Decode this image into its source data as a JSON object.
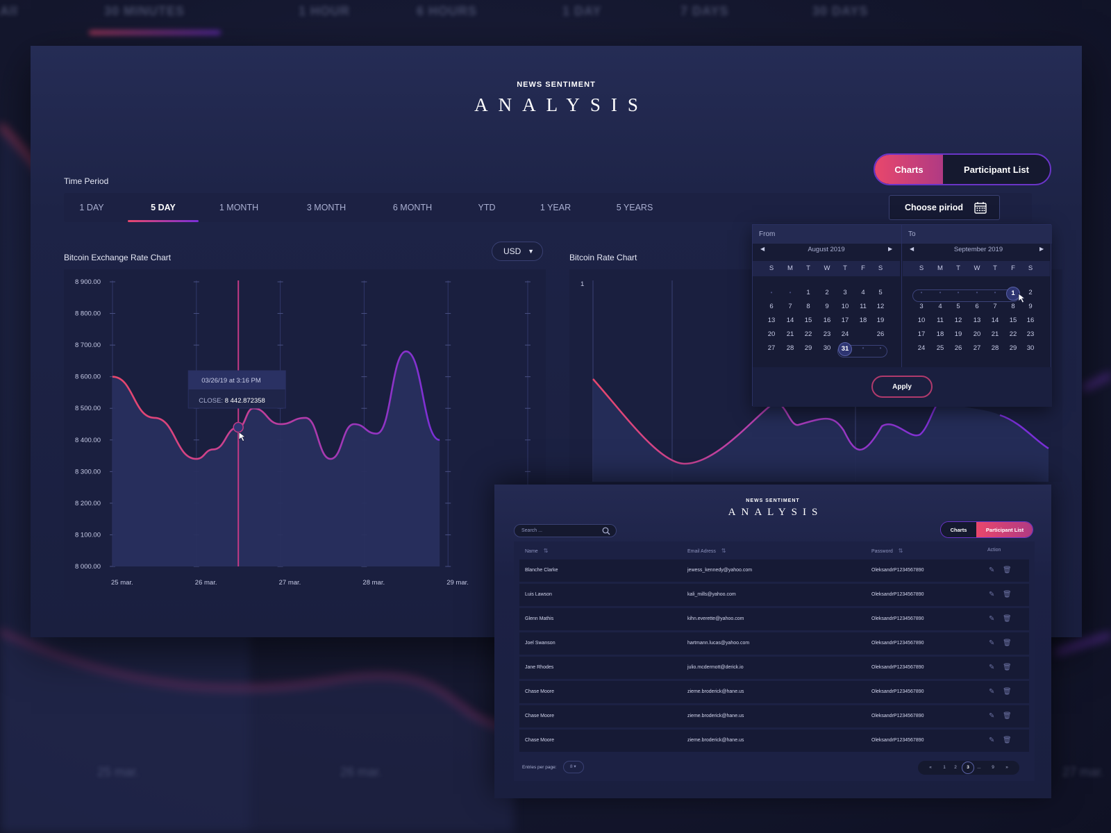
{
  "background": {
    "nav_items": [
      "All",
      "30 MINUTES",
      "1 HOUR",
      "6 HOURS",
      "1 DAY",
      "7 DAYS",
      "30 DAYS"
    ],
    "date_labels": [
      "25 mar.",
      "26 mar.",
      "27 mar."
    ]
  },
  "main": {
    "eyebrow": "NEWS SENTIMENT",
    "title": "ANALYSIS",
    "toggle": {
      "charts": "Charts",
      "participants": "Participant List",
      "active": "Charts"
    },
    "time_period_label": "Time Period",
    "periods": [
      "1 DAY",
      "5 DAY",
      "1 MONTH",
      "3 MONTH",
      "6 MONTH",
      "YTD",
      "1 YEAR",
      "5 YEARS"
    ],
    "active_period": "5 DAY",
    "choose_period": "Choose piriod",
    "currency": "USD",
    "chart1_title": "Bitcoin Exchange Rate Chart",
    "chart2_title": "Bitcoin Rate Chart",
    "chart2_tick": "1"
  },
  "chart_data": [
    {
      "type": "area",
      "title": "Bitcoin Exchange Rate Chart",
      "ylim": [
        8000,
        8900
      ],
      "y_ticks": [
        "8 900.00",
        "8 800.00",
        "8 700.00",
        "8 600.00",
        "8 500.00",
        "8 400.00",
        "8 300.00",
        "8 200.00",
        "8 100.00",
        "8 000.00"
      ],
      "x_ticks": [
        "25 mar.",
        "26 mar.",
        "27 mar.",
        "28 mar.",
        "29 mar."
      ],
      "x": [
        0,
        0.5,
        1.0,
        1.2,
        1.5,
        1.68,
        2.0,
        2.3,
        2.6,
        2.88,
        3.15,
        3.5,
        3.9
      ],
      "values": [
        8600,
        8470,
        8340,
        8370,
        8440,
        8500,
        8450,
        8470,
        8340,
        8450,
        8420,
        8680,
        8400
      ],
      "tooltip": {
        "date": "03/26/19 at 3:16 PM",
        "close_label": "CLOSE:",
        "close_value": "8 442.872358",
        "x": 1.5
      },
      "grid": true
    }
  ],
  "date_picker": {
    "from_label": "From",
    "to_label": "To",
    "weekdays": [
      "S",
      "M",
      "T",
      "W",
      "T",
      "F",
      "S"
    ],
    "left": {
      "month": "August 2019",
      "weeks": [
        [
          "•",
          "•",
          "1",
          "2",
          "3",
          "4",
          "5"
        ],
        [
          "6",
          "7",
          "8",
          "9",
          "10",
          "11",
          "12"
        ],
        [
          "13",
          "14",
          "15",
          "16",
          "17",
          "18",
          "19"
        ],
        [
          "20",
          "21",
          "22",
          "23",
          "24",
          "",
          "26"
        ],
        [
          "27",
          "28",
          "29",
          "30",
          "31",
          "•",
          "•"
        ]
      ],
      "selected": "31"
    },
    "right": {
      "month": "September 2019",
      "weeks": [
        [
          "•",
          "•",
          "•",
          "•",
          "•",
          "1",
          "2"
        ],
        [
          "3",
          "4",
          "5",
          "6",
          "7",
          "8",
          "9"
        ],
        [
          "10",
          "11",
          "12",
          "13",
          "14",
          "15",
          "16"
        ],
        [
          "17",
          "18",
          "19",
          "20",
          "21",
          "22",
          "23"
        ],
        [
          "24",
          "25",
          "26",
          "27",
          "28",
          "29",
          "30"
        ]
      ],
      "selected": "1"
    },
    "apply": "Apply"
  },
  "participant_window": {
    "eyebrow": "NEWS SENTIMENT",
    "title": "ANALYSIS",
    "search_placeholder": "Search ...",
    "toggle": {
      "charts": "Charts",
      "participants": "Participant List",
      "active": "Participant List"
    },
    "columns": {
      "name": "Name",
      "email": "Email Adress",
      "password": "Password",
      "action": "Action"
    },
    "rows": [
      {
        "name": "Blanche Clarke",
        "email": "jewess_kennedy@yahoo.com",
        "password": "OleksandrP1234567890"
      },
      {
        "name": "Luis Lawson",
        "email": "kali_mills@yahoo.com",
        "password": "OleksandrP1234567890"
      },
      {
        "name": "Glenn Mathis",
        "email": "kihn.everette@yahoo.com",
        "password": "OleksandrP1234567890"
      },
      {
        "name": "Joel Swanson",
        "email": "hartmann.lucas@yahoo.com",
        "password": "OleksandrP1234567890"
      },
      {
        "name": "Jane Rhodes",
        "email": "julio.mcdermott@derick.io",
        "password": "OleksandrP1234567890"
      },
      {
        "name": "Chase Moore",
        "email": "zieme.broderick@hane.us",
        "password": "OleksandrP1234567890"
      },
      {
        "name": "Chase Moore",
        "email": "zieme.broderick@hane.us",
        "password": "OleksandrP1234567890"
      },
      {
        "name": "Chase Moore",
        "email": "zieme.broderick@hane.us",
        "password": "OleksandrP1234567890"
      }
    ],
    "entries_label": "Entries per page:",
    "entries_value": "8",
    "pagination": [
      "«",
      "1",
      "2",
      "3",
      "...",
      "9",
      "»"
    ],
    "current_page": "3"
  },
  "colors": {
    "accent_pink": "#e8476c",
    "accent_purple": "#7a2fd8",
    "panel": "#1a1f3f"
  }
}
